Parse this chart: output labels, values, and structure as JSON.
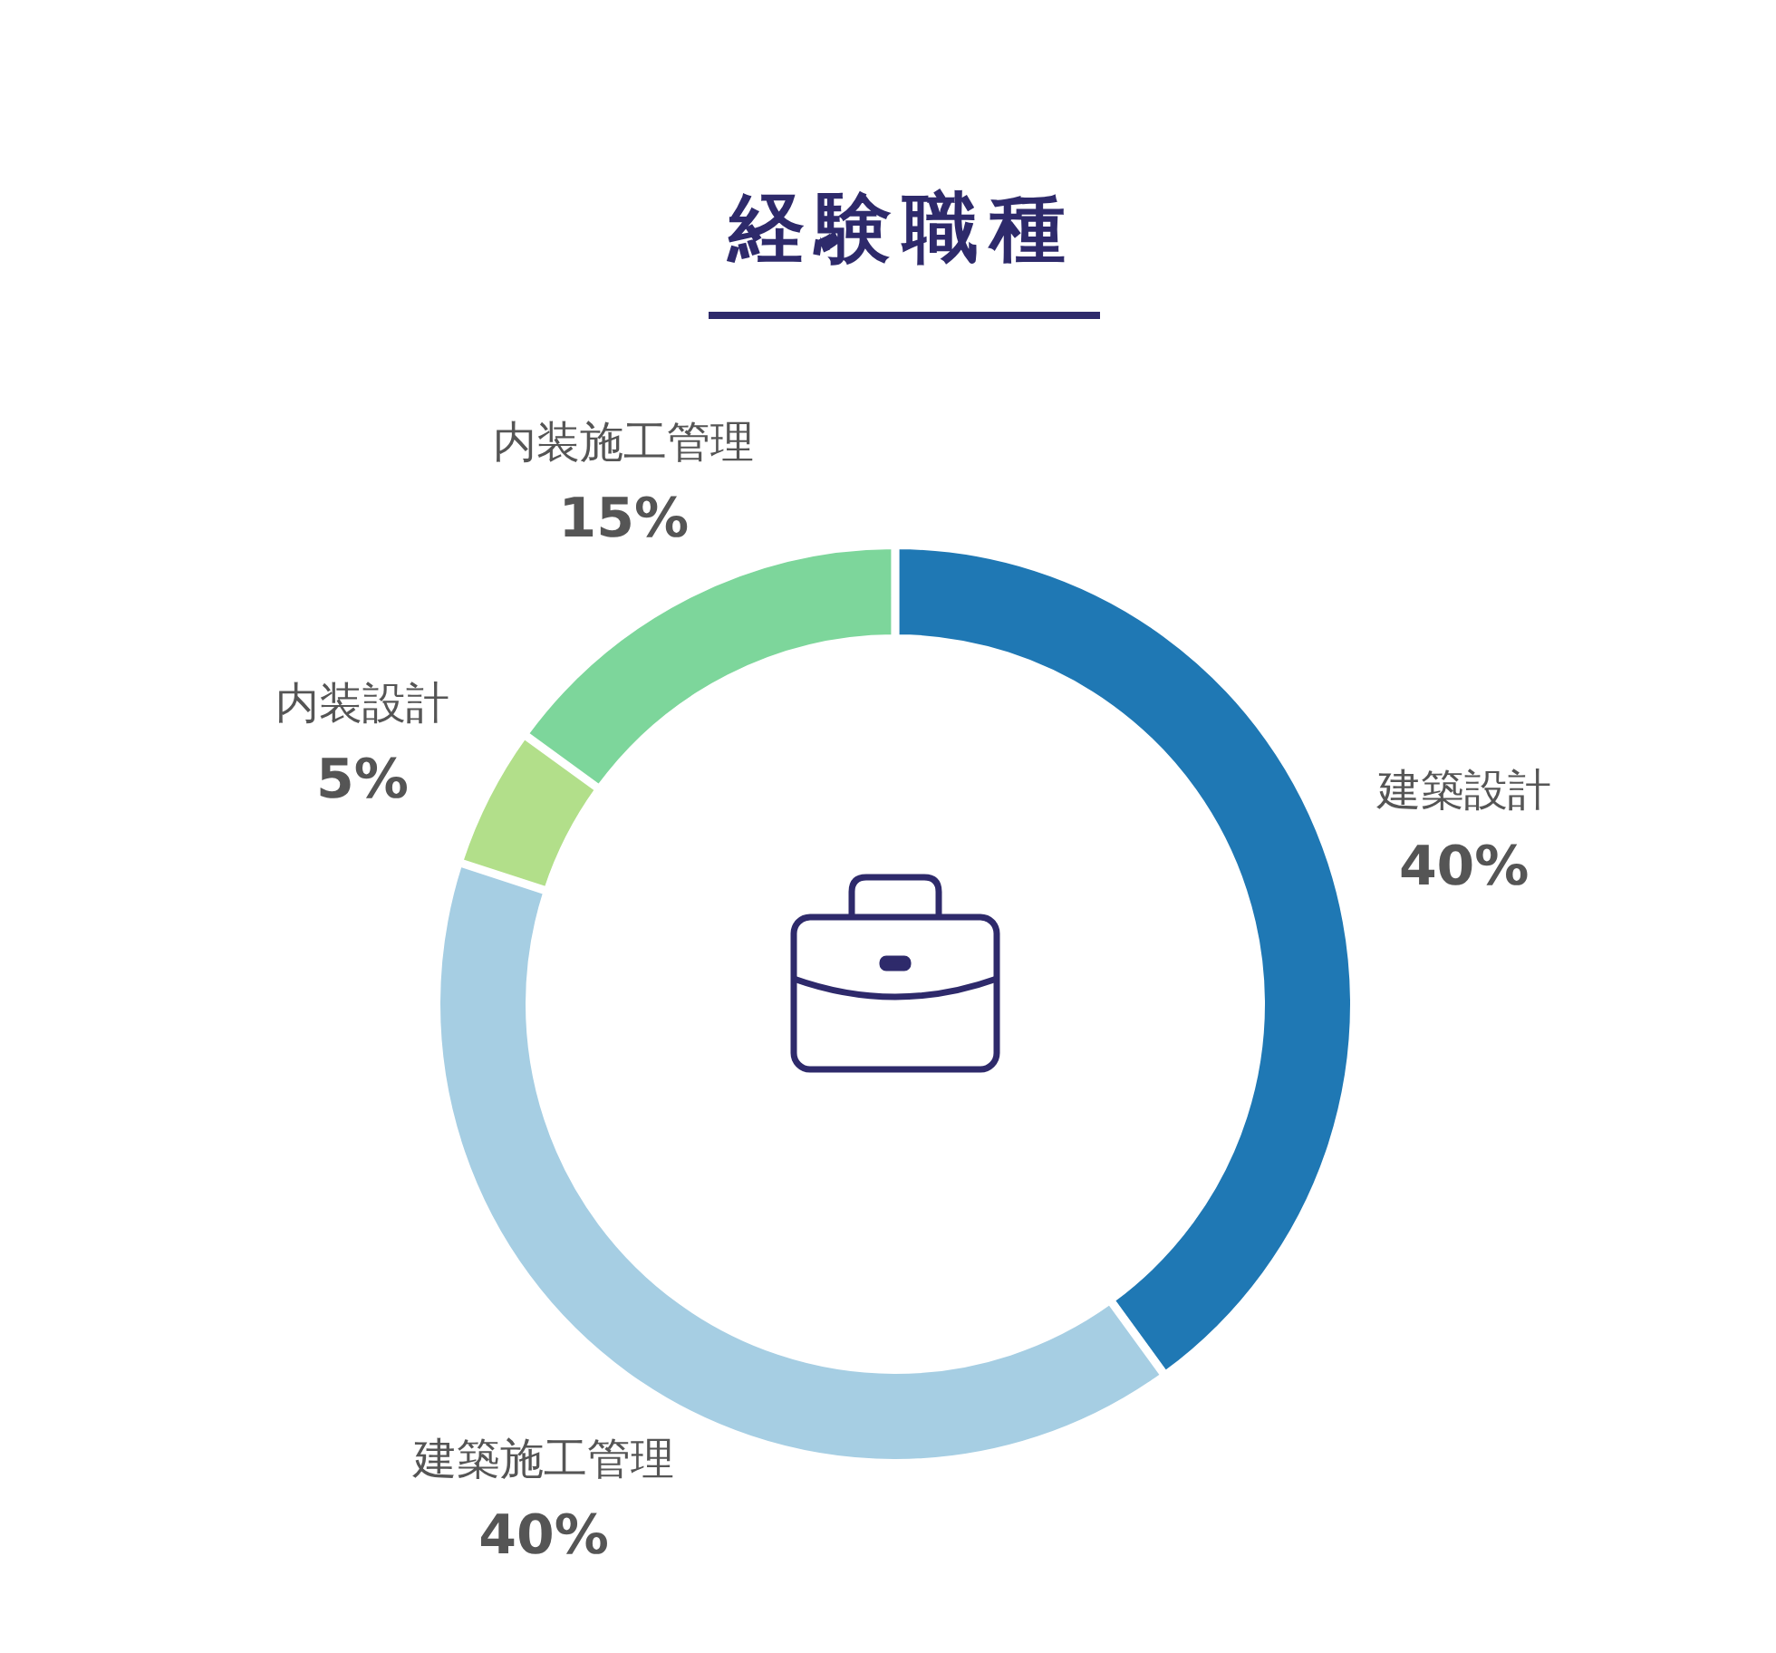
{
  "chart_data": {
    "type": "donut",
    "title": "経験職種",
    "categories": [
      "建築設計",
      "建築施工管理",
      "内装設計",
      "内装施工管理"
    ],
    "values": [
      40,
      40,
      5,
      15
    ],
    "colors": [
      "#1f78b4",
      "#a6cee3",
      "#b2df8a",
      "#7dd69b"
    ],
    "value_labels": [
      "40%",
      "40%",
      "5%",
      "15%"
    ]
  }
}
